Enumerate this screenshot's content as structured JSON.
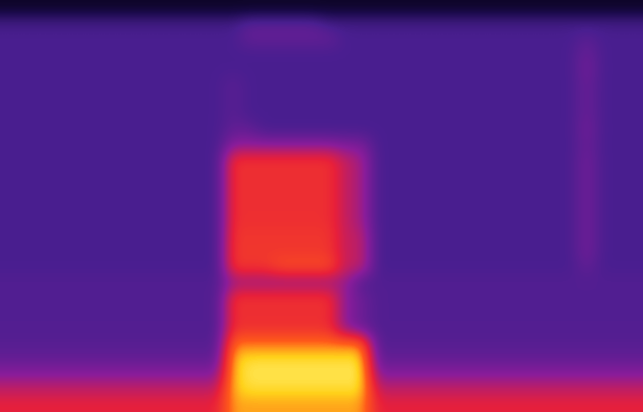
{
  "chart_data": {
    "type": "heatmap",
    "tick_labels": false,
    "zlim": [
      0,
      100
    ],
    "values": [
      [
        8,
        8,
        8,
        8,
        8,
        8,
        8,
        8,
        8,
        8,
        8,
        8,
        8,
        8,
        8,
        8,
        8,
        8,
        8,
        8,
        8,
        8,
        8,
        8,
        8,
        8,
        8,
        8,
        8,
        8,
        8,
        8,
        8,
        8,
        8,
        8,
        8,
        8,
        8,
        8
      ],
      [
        28,
        28,
        28,
        28,
        28,
        28,
        28,
        28,
        28,
        28,
        28,
        28,
        28,
        28,
        28,
        34,
        34,
        34,
        34,
        34,
        28,
        28,
        28,
        28,
        28,
        28,
        28,
        28,
        28,
        28,
        28,
        28,
        28,
        28,
        28,
        28,
        28,
        28,
        28,
        28
      ],
      [
        30,
        30,
        30,
        30,
        30,
        30,
        30,
        30,
        30,
        30,
        30,
        30,
        30,
        30,
        30,
        36,
        36,
        36,
        36,
        36,
        36,
        30,
        30,
        30,
        30,
        30,
        30,
        30,
        30,
        30,
        30,
        30,
        30,
        30,
        30,
        30,
        34,
        30,
        30,
        30
      ],
      [
        30,
        30,
        30,
        30,
        30,
        30,
        30,
        30,
        30,
        30,
        30,
        30,
        30,
        30,
        30,
        30,
        30,
        30,
        30,
        30,
        30,
        30,
        30,
        30,
        30,
        30,
        30,
        30,
        30,
        30,
        30,
        30,
        30,
        30,
        30,
        30,
        38,
        30,
        30,
        30
      ],
      [
        30,
        30,
        30,
        30,
        30,
        30,
        30,
        30,
        30,
        30,
        30,
        30,
        30,
        30,
        30,
        30,
        30,
        30,
        30,
        30,
        30,
        30,
        30,
        30,
        30,
        30,
        30,
        30,
        30,
        30,
        30,
        30,
        30,
        30,
        30,
        30,
        40,
        30,
        30,
        30
      ],
      [
        30,
        30,
        30,
        30,
        30,
        30,
        30,
        30,
        30,
        30,
        30,
        30,
        30,
        30,
        34,
        30,
        30,
        30,
        30,
        30,
        30,
        30,
        30,
        30,
        30,
        30,
        30,
        30,
        30,
        30,
        30,
        30,
        30,
        30,
        30,
        30,
        38,
        30,
        30,
        30
      ],
      [
        30,
        30,
        30,
        30,
        30,
        30,
        30,
        30,
        30,
        30,
        30,
        30,
        30,
        30,
        34,
        30,
        30,
        30,
        30,
        30,
        30,
        30,
        30,
        30,
        30,
        30,
        30,
        30,
        30,
        30,
        30,
        30,
        30,
        30,
        30,
        30,
        38,
        30,
        30,
        30
      ],
      [
        30,
        30,
        30,
        30,
        30,
        30,
        30,
        30,
        30,
        30,
        30,
        30,
        30,
        30,
        34,
        30,
        30,
        30,
        30,
        30,
        30,
        30,
        30,
        30,
        30,
        30,
        30,
        30,
        30,
        30,
        30,
        30,
        30,
        30,
        30,
        30,
        38,
        30,
        30,
        30
      ],
      [
        30,
        30,
        30,
        30,
        30,
        30,
        30,
        30,
        30,
        30,
        30,
        30,
        30,
        30,
        36,
        36,
        30,
        30,
        30,
        30,
        30,
        30,
        30,
        30,
        30,
        30,
        30,
        30,
        30,
        30,
        30,
        30,
        30,
        30,
        30,
        30,
        40,
        30,
        30,
        30
      ],
      [
        30,
        30,
        30,
        30,
        30,
        30,
        30,
        30,
        30,
        30,
        30,
        30,
        30,
        30,
        45,
        45,
        45,
        45,
        45,
        45,
        45,
        42,
        42,
        30,
        30,
        30,
        30,
        30,
        30,
        30,
        30,
        30,
        30,
        30,
        30,
        30,
        38,
        30,
        30,
        30
      ],
      [
        30,
        30,
        30,
        30,
        30,
        30,
        30,
        30,
        30,
        30,
        30,
        30,
        30,
        30,
        66,
        66,
        66,
        66,
        66,
        66,
        66,
        55,
        50,
        30,
        30,
        30,
        30,
        30,
        30,
        30,
        30,
        30,
        30,
        30,
        30,
        30,
        40,
        30,
        30,
        30
      ],
      [
        30,
        30,
        30,
        30,
        30,
        30,
        30,
        30,
        30,
        30,
        30,
        30,
        30,
        30,
        66,
        66,
        66,
        66,
        66,
        66,
        66,
        55,
        50,
        30,
        30,
        30,
        30,
        30,
        30,
        30,
        30,
        30,
        30,
        30,
        30,
        30,
        40,
        30,
        30,
        30
      ],
      [
        30,
        30,
        30,
        30,
        30,
        30,
        30,
        30,
        30,
        30,
        30,
        30,
        30,
        30,
        66,
        66,
        66,
        66,
        66,
        66,
        66,
        55,
        50,
        30,
        30,
        30,
        30,
        30,
        30,
        30,
        30,
        30,
        30,
        30,
        30,
        30,
        40,
        30,
        30,
        30
      ],
      [
        30,
        30,
        30,
        30,
        30,
        30,
        30,
        30,
        30,
        30,
        30,
        30,
        30,
        30,
        66,
        66,
        66,
        66,
        66,
        66,
        66,
        55,
        50,
        30,
        30,
        30,
        30,
        30,
        30,
        30,
        30,
        30,
        30,
        30,
        30,
        30,
        40,
        30,
        30,
        30
      ],
      [
        30,
        30,
        30,
        30,
        30,
        30,
        30,
        30,
        30,
        30,
        30,
        30,
        30,
        30,
        66,
        66,
        66,
        66,
        66,
        66,
        66,
        55,
        50,
        30,
        30,
        30,
        30,
        30,
        30,
        30,
        30,
        30,
        30,
        30,
        30,
        30,
        40,
        30,
        30,
        30
      ],
      [
        30,
        30,
        30,
        30,
        30,
        30,
        30,
        30,
        30,
        30,
        30,
        30,
        30,
        30,
        68,
        68,
        68,
        68,
        68,
        68,
        68,
        55,
        55,
        30,
        30,
        30,
        30,
        30,
        30,
        30,
        30,
        30,
        30,
        30,
        30,
        30,
        40,
        30,
        30,
        30
      ],
      [
        30,
        30,
        30,
        30,
        30,
        30,
        30,
        30,
        30,
        30,
        30,
        30,
        30,
        30,
        68,
        68,
        68,
        68,
        68,
        68,
        68,
        55,
        55,
        30,
        30,
        30,
        30,
        30,
        30,
        30,
        30,
        30,
        30,
        30,
        30,
        30,
        40,
        30,
        30,
        30
      ],
      [
        30,
        30,
        30,
        30,
        30,
        30,
        30,
        30,
        30,
        30,
        30,
        30,
        30,
        30,
        68,
        68,
        68,
        74,
        74,
        74,
        74,
        55,
        55,
        30,
        30,
        30,
        30,
        30,
        30,
        30,
        30,
        30,
        30,
        30,
        30,
        30,
        36,
        30,
        30,
        30
      ],
      [
        32,
        32,
        32,
        32,
        32,
        32,
        32,
        32,
        32,
        32,
        32,
        32,
        32,
        32,
        48,
        48,
        48,
        48,
        48,
        48,
        48,
        48,
        32,
        32,
        32,
        32,
        32,
        32,
        32,
        32,
        32,
        32,
        32,
        32,
        32,
        32,
        32,
        32,
        32,
        32
      ],
      [
        32,
        32,
        32,
        32,
        32,
        32,
        32,
        32,
        32,
        32,
        32,
        32,
        32,
        32,
        66,
        66,
        66,
        66,
        66,
        66,
        66,
        45,
        38,
        32,
        32,
        32,
        32,
        32,
        32,
        32,
        32,
        32,
        32,
        32,
        32,
        32,
        32,
        32,
        32,
        32
      ],
      [
        32,
        32,
        32,
        32,
        32,
        32,
        32,
        32,
        32,
        32,
        32,
        32,
        32,
        32,
        66,
        66,
        66,
        66,
        66,
        66,
        66,
        45,
        38,
        32,
        32,
        32,
        32,
        32,
        32,
        32,
        32,
        32,
        32,
        32,
        32,
        32,
        32,
        32,
        32,
        32
      ],
      [
        32,
        32,
        32,
        32,
        32,
        32,
        32,
        32,
        32,
        32,
        32,
        32,
        32,
        32,
        66,
        66,
        66,
        66,
        66,
        66,
        66,
        45,
        38,
        32,
        32,
        32,
        32,
        32,
        32,
        32,
        32,
        32,
        32,
        32,
        32,
        32,
        32,
        32,
        32,
        32
      ],
      [
        33,
        33,
        33,
        33,
        33,
        33,
        33,
        33,
        33,
        33,
        33,
        33,
        33,
        33,
        80,
        80,
        80,
        80,
        80,
        80,
        80,
        80,
        80,
        33,
        33,
        33,
        33,
        33,
        33,
        33,
        33,
        33,
        33,
        33,
        33,
        33,
        33,
        33,
        33,
        33
      ],
      [
        36,
        36,
        36,
        36,
        36,
        36,
        36,
        36,
        36,
        36,
        36,
        36,
        36,
        36,
        88,
        92,
        92,
        92,
        92,
        92,
        92,
        92,
        92,
        36,
        36,
        36,
        36,
        36,
        36,
        36,
        36,
        36,
        36,
        36,
        36,
        36,
        36,
        36,
        36,
        36
      ],
      [
        44,
        44,
        44,
        44,
        44,
        44,
        44,
        44,
        44,
        44,
        44,
        44,
        44,
        44,
        88,
        94,
        94,
        94,
        94,
        94,
        94,
        94,
        94,
        44,
        44,
        44,
        44,
        44,
        44,
        44,
        44,
        44,
        44,
        44,
        44,
        44,
        44,
        44,
        44,
        44
      ],
      [
        55,
        55,
        55,
        55,
        55,
        55,
        55,
        55,
        55,
        55,
        55,
        55,
        55,
        55,
        88,
        92,
        92,
        92,
        92,
        92,
        92,
        92,
        92,
        55,
        55,
        55,
        55,
        55,
        55,
        55,
        55,
        55,
        55,
        55,
        55,
        55,
        55,
        55,
        55,
        55
      ],
      [
        62,
        62,
        62,
        62,
        62,
        62,
        62,
        62,
        62,
        62,
        62,
        62,
        62,
        62,
        85,
        85,
        85,
        85,
        85,
        85,
        85,
        85,
        85,
        62,
        62,
        62,
        62,
        62,
        62,
        62,
        62,
        62,
        62,
        62,
        62,
        62,
        62,
        62,
        62,
        62
      ]
    ]
  }
}
